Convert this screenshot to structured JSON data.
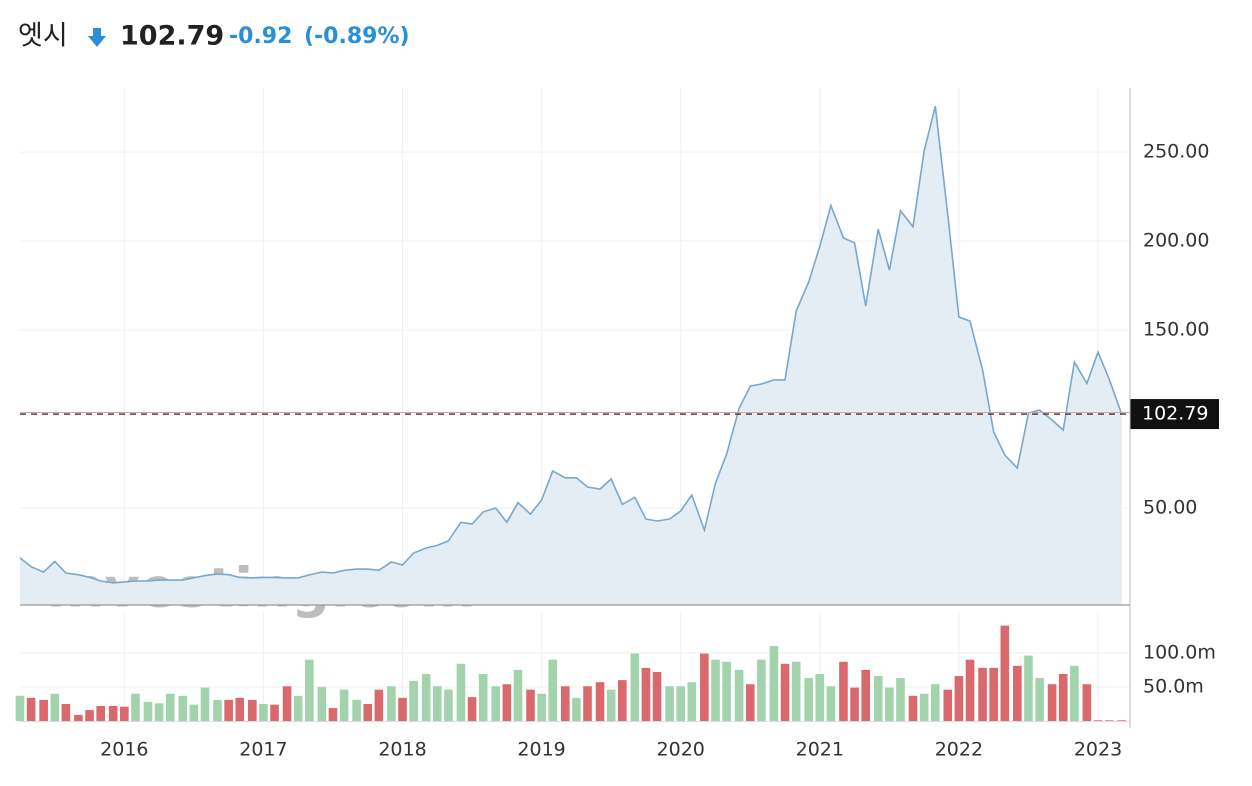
{
  "header": {
    "name": "엣시",
    "price": "102.79",
    "change": "-0.92",
    "change_pct": "(-0.89%)",
    "watermark": "Investing.com"
  },
  "chart_data": [
    {
      "type": "area",
      "color": "#7aa7cc",
      "fill": "#e4ecf4",
      "grid": true,
      "xlim": [
        2015.25,
        2023.23
      ],
      "xticks": [
        2016,
        2017,
        2018,
        2019,
        2020,
        2021,
        2022,
        2023
      ],
      "ylim": [
        -4.5,
        286
      ],
      "yticks": [
        {
          "value": 50,
          "label": "50.00"
        },
        {
          "value": 150,
          "label": "150.00"
        },
        {
          "value": 200,
          "label": "200.00"
        },
        {
          "value": 250,
          "label": "250.00"
        }
      ],
      "last_price": 102.79,
      "x": [
        2015.25,
        2015.33,
        2015.42,
        2015.5,
        2015.58,
        2015.67,
        2015.75,
        2015.83,
        2015.92,
        2016,
        2016.08,
        2016.17,
        2016.25,
        2016.33,
        2016.42,
        2016.5,
        2016.58,
        2016.67,
        2016.75,
        2016.83,
        2016.92,
        2017,
        2017.08,
        2017.17,
        2017.25,
        2017.33,
        2017.42,
        2017.5,
        2017.58,
        2017.67,
        2017.75,
        2017.83,
        2017.92,
        2018,
        2018.08,
        2018.17,
        2018.25,
        2018.33,
        2018.42,
        2018.5,
        2018.58,
        2018.67,
        2018.75,
        2018.83,
        2018.92,
        2019,
        2019.08,
        2019.17,
        2019.25,
        2019.33,
        2019.42,
        2019.5,
        2019.58,
        2019.67,
        2019.75,
        2019.83,
        2019.92,
        2020,
        2020.08,
        2020.17,
        2020.25,
        2020.33,
        2020.42,
        2020.5,
        2020.58,
        2020.67,
        2020.75,
        2020.83,
        2020.92,
        2021,
        2021.08,
        2021.17,
        2021.25,
        2021.33,
        2021.42,
        2021.5,
        2021.58,
        2021.67,
        2021.75,
        2021.83,
        2021.92,
        2022,
        2022.08,
        2022.17,
        2022.25,
        2022.33,
        2022.42,
        2022.5,
        2022.58,
        2022.67,
        2022.75,
        2022.83,
        2022.92,
        2023,
        2023.08,
        2023.17
      ],
      "values": [
        22,
        17,
        14,
        20,
        13.5,
        12.5,
        11,
        9,
        8,
        8.5,
        9,
        9,
        9.5,
        9.5,
        9.5,
        10.7,
        12,
        13,
        12.5,
        11,
        10.7,
        11,
        11,
        10.7,
        10.7,
        12.4,
        14,
        13.5,
        15,
        15.7,
        15.7,
        15,
        19.7,
        18,
        24.7,
        27.5,
        29,
        31.5,
        42,
        41,
        47.8,
        50,
        42,
        53,
        46.6,
        54.5,
        70.8,
        67,
        67,
        61.8,
        60.7,
        66.3,
        52,
        56,
        43.8,
        42.7,
        43.8,
        48.3,
        57.3,
        37.6,
        64,
        80.3,
        106,
        118.5,
        119.7,
        122,
        122,
        160.7,
        177,
        197,
        220,
        201.7,
        199,
        163.5,
        206.7,
        183.7,
        217,
        208,
        250.5,
        275.8,
        214.6,
        157.3,
        155,
        127.5,
        92.7,
        79.8,
        72.5,
        103.4,
        105,
        99.4,
        93.8,
        132,
        120,
        137.6,
        122.5,
        102.79
      ]
    },
    {
      "type": "bar",
      "grid": true,
      "xlim": [
        2015.25,
        2023.23
      ],
      "xticks": [
        2016,
        2017,
        2018,
        2019,
        2020,
        2021,
        2022,
        2023
      ],
      "ylim": [
        0,
        160
      ],
      "yticks": [
        {
          "value": 50,
          "label": "50.0m"
        },
        {
          "value": 100,
          "label": "100.0m"
        }
      ],
      "x": [
        2015.25,
        2015.33,
        2015.42,
        2015.5,
        2015.58,
        2015.67,
        2015.75,
        2015.83,
        2015.92,
        2016,
        2016.08,
        2016.17,
        2016.25,
        2016.33,
        2016.42,
        2016.5,
        2016.58,
        2016.67,
        2016.75,
        2016.83,
        2016.92,
        2017,
        2017.08,
        2017.17,
        2017.25,
        2017.33,
        2017.42,
        2017.5,
        2017.58,
        2017.67,
        2017.75,
        2017.83,
        2017.92,
        2018,
        2018.08,
        2018.17,
        2018.25,
        2018.33,
        2018.42,
        2018.5,
        2018.58,
        2018.67,
        2018.75,
        2018.83,
        2018.92,
        2019,
        2019.08,
        2019.17,
        2019.25,
        2019.33,
        2019.42,
        2019.5,
        2019.58,
        2019.67,
        2019.75,
        2019.83,
        2019.92,
        2020,
        2020.08,
        2020.17,
        2020.25,
        2020.33,
        2020.42,
        2020.5,
        2020.58,
        2020.67,
        2020.75,
        2020.83,
        2020.92,
        2021,
        2021.08,
        2021.17,
        2021.25,
        2021.33,
        2021.42,
        2021.5,
        2021.58,
        2021.67,
        2021.75,
        2021.83,
        2021.92,
        2022,
        2022.08,
        2022.17,
        2022.25,
        2022.33,
        2022.42,
        2022.5,
        2022.58,
        2022.67,
        2022.75,
        2022.83,
        2022.92,
        2023,
        2023.08,
        2023.17
      ],
      "values": [
        37,
        34,
        31,
        40,
        25,
        9,
        16,
        22,
        22,
        21,
        40,
        28,
        26,
        40,
        37,
        24,
        49,
        31,
        31,
        34,
        31,
        25,
        24,
        51,
        37,
        90,
        50,
        19,
        46,
        31,
        25,
        46,
        51,
        34,
        59,
        69,
        51,
        46,
        84,
        35,
        69,
        51,
        54,
        75,
        46,
        40,
        90,
        51,
        34,
        51,
        57,
        46,
        60,
        99,
        78,
        72,
        51,
        51,
        57,
        99,
        90,
        87,
        75,
        54,
        90,
        110,
        84,
        87,
        63,
        69,
        51,
        87,
        49,
        75,
        66,
        49,
        63,
        37,
        40,
        54,
        46,
        66,
        90,
        78,
        78,
        140,
        81,
        96,
        63,
        54,
        69,
        81,
        54,
        1,
        1,
        1
      ],
      "bar_colors": [
        "#a3d3ad",
        "#d9696c",
        "#d9696c",
        "#a3d3ad",
        "#d9696c",
        "#d9696c",
        "#d9696c",
        "#d9696c",
        "#d9696c",
        "#d9696c",
        "#a3d3ad",
        "#a3d3ad",
        "#a3d3ad",
        "#a3d3ad",
        "#a3d3ad",
        "#a3d3ad",
        "#a3d3ad",
        "#a3d3ad",
        "#d9696c",
        "#d9696c",
        "#d9696c",
        "#a3d3ad",
        "#d9696c",
        "#d9696c",
        "#a3d3ad",
        "#a3d3ad",
        "#a3d3ad",
        "#d9696c",
        "#a3d3ad",
        "#a3d3ad",
        "#d9696c",
        "#d9696c",
        "#a3d3ad",
        "#d9696c",
        "#a3d3ad",
        "#a3d3ad",
        "#a3d3ad",
        "#a3d3ad",
        "#a3d3ad",
        "#d9696c",
        "#a3d3ad",
        "#a3d3ad",
        "#d9696c",
        "#a3d3ad",
        "#d9696c",
        "#a3d3ad",
        "#a3d3ad",
        "#d9696c",
        "#a3d3ad",
        "#d9696c",
        "#d9696c",
        "#a3d3ad",
        "#d9696c",
        "#a3d3ad",
        "#d9696c",
        "#d9696c",
        "#a3d3ad",
        "#a3d3ad",
        "#a3d3ad",
        "#d9696c",
        "#a3d3ad",
        "#a3d3ad",
        "#a3d3ad",
        "#d9696c",
        "#a3d3ad",
        "#a3d3ad",
        "#d9696c",
        "#a3d3ad",
        "#a3d3ad",
        "#a3d3ad",
        "#a3d3ad",
        "#d9696c",
        "#d9696c",
        "#d9696c",
        "#a3d3ad",
        "#a3d3ad",
        "#a3d3ad",
        "#d9696c",
        "#a3d3ad",
        "#a3d3ad",
        "#d9696c",
        "#d9696c",
        "#d9696c",
        "#d9696c",
        "#d9696c",
        "#d9696c",
        "#d9696c",
        "#a3d3ad",
        "#a3d3ad",
        "#d9696c",
        "#d9696c",
        "#a3d3ad",
        "#d9696c",
        "#d9696c",
        "#d9696c",
        "#d9696c"
      ]
    }
  ]
}
